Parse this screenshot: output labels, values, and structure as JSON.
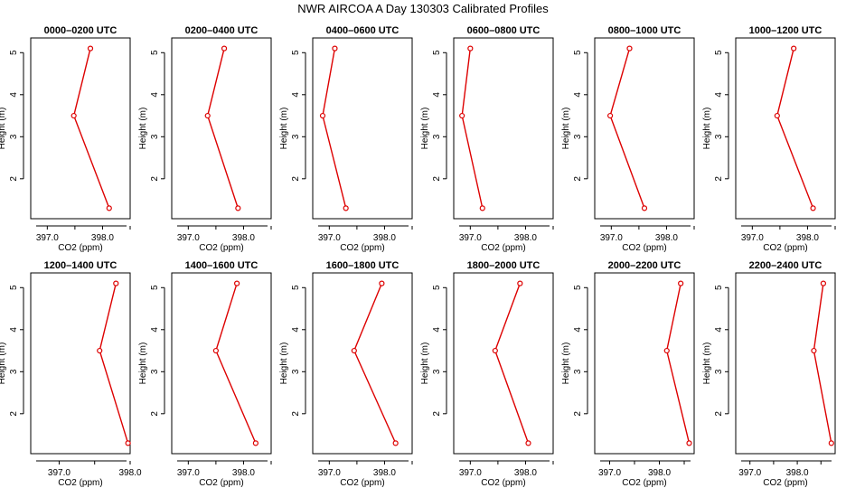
{
  "title": "NWR AIRCOA A  Day 130303  Calibrated Profiles",
  "colors": {
    "series": "#dd0000",
    "axis": "#000000",
    "background": "#ffffff"
  },
  "chart_data": [
    {
      "type": "line",
      "title": "0000–0200 UTC",
      "xlabel": "CO2 (ppm)",
      "ylabel": "Height (m)",
      "heights": [
        1.3,
        3.5,
        5.1
      ],
      "values": [
        398.12,
        397.48,
        397.78
      ],
      "xticks": [
        397.0,
        398.0
      ],
      "xlim": [
        396.7,
        398.5
      ],
      "yticks": [
        2,
        3,
        4,
        5
      ],
      "ylim": [
        1.05,
        5.35
      ],
      "grid": false
    },
    {
      "type": "line",
      "title": "0200–0400 UTC",
      "xlabel": "CO2 (ppm)",
      "ylabel": "Height (m)",
      "heights": [
        1.3,
        3.5,
        5.1
      ],
      "values": [
        397.9,
        397.35,
        397.65
      ],
      "xticks": [
        397.0,
        398.0
      ],
      "xlim": [
        396.7,
        398.5
      ],
      "yticks": [
        2,
        3,
        4,
        5
      ],
      "ylim": [
        1.05,
        5.35
      ],
      "grid": false
    },
    {
      "type": "line",
      "title": "0400–0600 UTC",
      "xlabel": "CO2 (ppm)",
      "ylabel": "Height (m)",
      "heights": [
        1.3,
        3.5,
        5.1
      ],
      "values": [
        397.3,
        396.88,
        397.1
      ],
      "xticks": [
        397.0,
        398.0
      ],
      "xlim": [
        396.7,
        398.5
      ],
      "yticks": [
        2,
        3,
        4,
        5
      ],
      "ylim": [
        1.05,
        5.35
      ],
      "grid": false
    },
    {
      "type": "line",
      "title": "0600–0800 UTC",
      "xlabel": "CO2 (ppm)",
      "ylabel": "Height (m)",
      "heights": [
        1.3,
        3.5,
        5.1
      ],
      "values": [
        397.22,
        396.85,
        397.0
      ],
      "xticks": [
        397.0,
        398.0
      ],
      "xlim": [
        396.7,
        398.5
      ],
      "yticks": [
        2,
        3,
        4,
        5
      ],
      "ylim": [
        1.05,
        5.35
      ],
      "grid": false
    },
    {
      "type": "line",
      "title": "0800–1000 UTC",
      "xlabel": "CO2 (ppm)",
      "ylabel": "Height (m)",
      "heights": [
        1.3,
        3.5,
        5.1
      ],
      "values": [
        397.6,
        396.98,
        397.33
      ],
      "xticks": [
        397.0,
        398.0
      ],
      "xlim": [
        396.7,
        398.5
      ],
      "yticks": [
        2,
        3,
        4,
        5
      ],
      "ylim": [
        1.05,
        5.35
      ],
      "grid": false
    },
    {
      "type": "line",
      "title": "1000–1200 UTC",
      "xlabel": "CO2 (ppm)",
      "ylabel": "Height (m)",
      "heights": [
        1.3,
        3.5,
        5.1
      ],
      "values": [
        398.1,
        397.45,
        397.75
      ],
      "xticks": [
        397.0,
        398.0
      ],
      "xlim": [
        396.7,
        398.5
      ],
      "yticks": [
        2,
        3,
        4,
        5
      ],
      "ylim": [
        1.05,
        5.35
      ],
      "grid": false
    },
    {
      "type": "line",
      "title": "1200–1400 UTC",
      "xlabel": "CO2 (ppm)",
      "ylabel": "Height (m)",
      "heights": [
        1.3,
        3.5,
        5.1
      ],
      "values": [
        397.97,
        397.57,
        397.8
      ],
      "xticks": [
        397.0,
        398.0
      ],
      "xlim": [
        396.6,
        398.0
      ],
      "yticks": [
        2,
        3,
        4,
        5
      ],
      "ylim": [
        1.05,
        5.35
      ],
      "grid": false
    },
    {
      "type": "line",
      "title": "1400–1600 UTC",
      "xlabel": "CO2 (ppm)",
      "ylabel": "Height (m)",
      "heights": [
        1.3,
        3.5,
        5.1
      ],
      "values": [
        398.22,
        397.5,
        397.88
      ],
      "xticks": [
        397.0,
        398.0
      ],
      "xlim": [
        396.7,
        398.5
      ],
      "yticks": [
        2,
        3,
        4,
        5
      ],
      "ylim": [
        1.05,
        5.35
      ],
      "grid": false
    },
    {
      "type": "line",
      "title": "1600–1800 UTC",
      "xlabel": "CO2 (ppm)",
      "ylabel": "Height (m)",
      "heights": [
        1.3,
        3.5,
        5.1
      ],
      "values": [
        398.2,
        397.45,
        397.95
      ],
      "xticks": [
        397.0,
        398.0
      ],
      "xlim": [
        396.7,
        398.5
      ],
      "yticks": [
        2,
        3,
        4,
        5
      ],
      "ylim": [
        1.05,
        5.35
      ],
      "grid": false
    },
    {
      "type": "line",
      "title": "1800–2000 UTC",
      "xlabel": "CO2 (ppm)",
      "ylabel": "Height (m)",
      "heights": [
        1.3,
        3.5,
        5.1
      ],
      "values": [
        398.05,
        397.45,
        397.9
      ],
      "xticks": [
        397.0,
        398.0
      ],
      "xlim": [
        396.7,
        398.5
      ],
      "yticks": [
        2,
        3,
        4,
        5
      ],
      "ylim": [
        1.05,
        5.35
      ],
      "grid": false
    },
    {
      "type": "line",
      "title": "2000–2200 UTC",
      "xlabel": "CO2 (ppm)",
      "ylabel": "Height (m)",
      "heights": [
        1.3,
        3.5,
        5.1
      ],
      "values": [
        398.6,
        398.15,
        398.43
      ],
      "xticks": [
        397.0,
        398.0
      ],
      "xlim": [
        396.7,
        398.7
      ],
      "yticks": [
        2,
        3,
        4,
        5
      ],
      "ylim": [
        1.05,
        5.35
      ],
      "grid": false
    },
    {
      "type": "line",
      "title": "2200–2400 UTC",
      "xlabel": "CO2 (ppm)",
      "ylabel": "Height (m)",
      "heights": [
        1.3,
        3.5,
        5.1
      ],
      "values": [
        398.72,
        398.35,
        398.55
      ],
      "xticks": [
        397.0,
        398.0
      ],
      "xlim": [
        396.7,
        398.8
      ],
      "yticks": [
        2,
        3,
        4,
        5
      ],
      "ylim": [
        1.05,
        5.35
      ],
      "grid": false
    }
  ]
}
